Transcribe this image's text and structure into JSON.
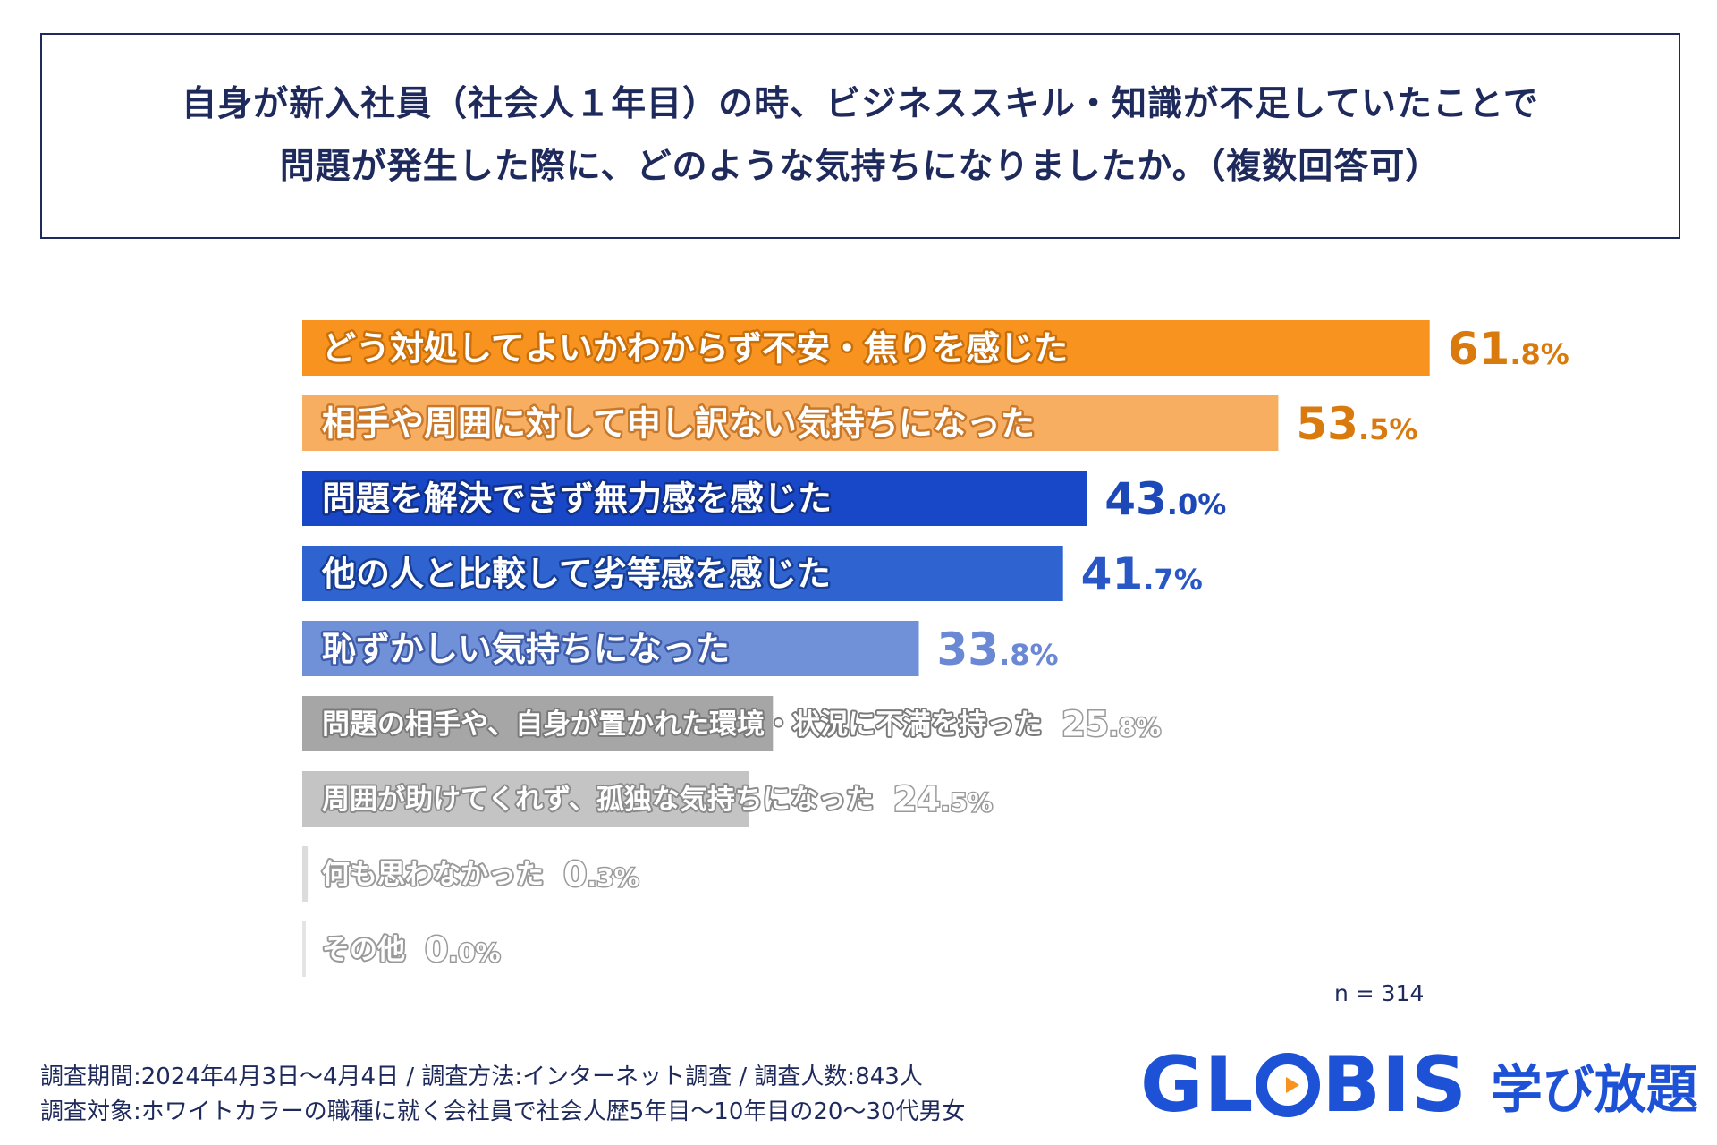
{
  "title": {
    "line1": "自身が新入社員（社会人１年目）の時、ビジネススキル・知識が不足していたことで",
    "line2": "問題が発生した際に、どのような気持ちになりましたか。（複数回答可）"
  },
  "chart_data": {
    "type": "bar",
    "orientation": "horizontal",
    "title": "自身が新入社員（社会人１年目）の時、ビジネススキル・知識が不足していたことで問題が発生した際に、どのような気持ちになりましたか。（複数回答可）",
    "unit": "%",
    "xlim": [
      0,
      100
    ],
    "categories": [
      "どう対処してよいかわからず不安・焦りを感じた",
      "相手や周囲に対して申し訳ない気持ちになった",
      "問題を解決できず無力感を感じた",
      "他の人と比較して劣等感を感じた",
      "恥ずかしい気持ちになった",
      "問題の相手や、自身が置かれた環境・状況に不満を持った",
      "周囲が助けてくれず、孤独な気持ちになった",
      "何も思わなかった",
      "その他"
    ],
    "values": [
      61.8,
      53.5,
      43.0,
      41.7,
      33.8,
      25.8,
      24.5,
      0.3,
      0.0
    ],
    "value_labels": [
      [
        "61",
        ".8%"
      ],
      [
        "53",
        ".5%"
      ],
      [
        "43",
        ".0%"
      ],
      [
        "41",
        ".7%"
      ],
      [
        "33",
        ".8%"
      ],
      [
        "25",
        ".8%"
      ],
      [
        "24",
        ".5%"
      ],
      [
        "0",
        ".3%"
      ],
      [
        "0",
        ".0%"
      ]
    ],
    "bar_colors": [
      "#f7931e",
      "#f8ae60",
      "#1848c8",
      "#2e63d0",
      "#7090d8",
      "#a6a6a6",
      "#c4c4c4",
      "#dcdcdc",
      "#e4e4e4"
    ],
    "value_colors": [
      "#d97a0e",
      "#d97a0e",
      "#1d48b8",
      "#2957c5",
      "#6a88d4",
      "#ffffff",
      "#ffffff",
      "#ffffff",
      "#ffffff"
    ],
    "value_outlines": [
      "none",
      "none",
      "none",
      "none",
      "none",
      "#9a9a9a",
      "#9a9a9a",
      "#9a9a9a",
      "#9a9a9a"
    ],
    "label_colors": [
      "#ffffff",
      "#ffffff",
      "#ffffff",
      "#ffffff",
      "#ffffff",
      "#ffffff",
      "#ffffff",
      "#ffffff",
      "#ffffff"
    ],
    "label_outlines": [
      "#c86f0c",
      "#c8782a",
      "#10308a",
      "#163e96",
      "#3e5ca8",
      "#7a7a7a",
      "#8a8a8a",
      "#9a9a9a",
      "#9a9a9a"
    ],
    "n_label": "n = 314"
  },
  "footer": {
    "line1": "調査期間:2024年4月3日〜4月4日 / 調査方法:インターネット調査 / 調査人数:843人",
    "line2": "調査対象:ホワイトカラーの職種に就く会社員で社会人歴5年目〜10年目の20〜30代男女"
  },
  "logo": {
    "brand_pre": "GL",
    "brand_post": "BIS",
    "sub": "学び放題",
    "brand_color": "#1d52d6",
    "play_color": "#f7931e"
  }
}
